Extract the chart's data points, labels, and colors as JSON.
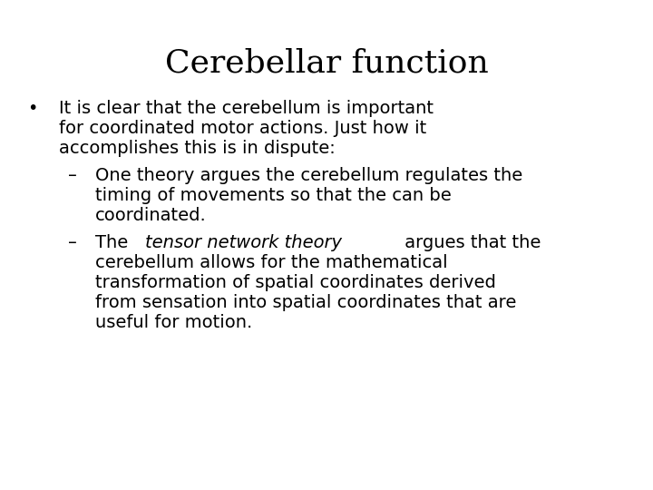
{
  "title": "Cerebellar function",
  "background_color": "#ffffff",
  "text_color": "#000000",
  "title_fontsize": 26,
  "body_fontsize": 14,
  "title_font": "serif",
  "body_font": "DejaVu Sans",
  "bullet": "•",
  "dash": "–",
  "bullet_line1": "It is clear that the cerebellum is important",
  "bullet_line2": "for coordinated motor actions. Just how it",
  "bullet_line3": "accomplishes this is in dispute:",
  "sub1_line1": "One theory argues the cerebellum regulates the",
  "sub1_line2": "timing of movements so that the can be",
  "sub1_line3": "coordinated.",
  "sub2_pre": "The ",
  "sub2_italic": "tensor network theory",
  "sub2_post": " argues that the",
  "sub2_line2": "cerebellum allows for the mathematical",
  "sub2_line3": "transformation of spatial coordinates derived",
  "sub2_line4": "from sensation into spatial coordinates that are",
  "sub2_line5": "useful for motion."
}
